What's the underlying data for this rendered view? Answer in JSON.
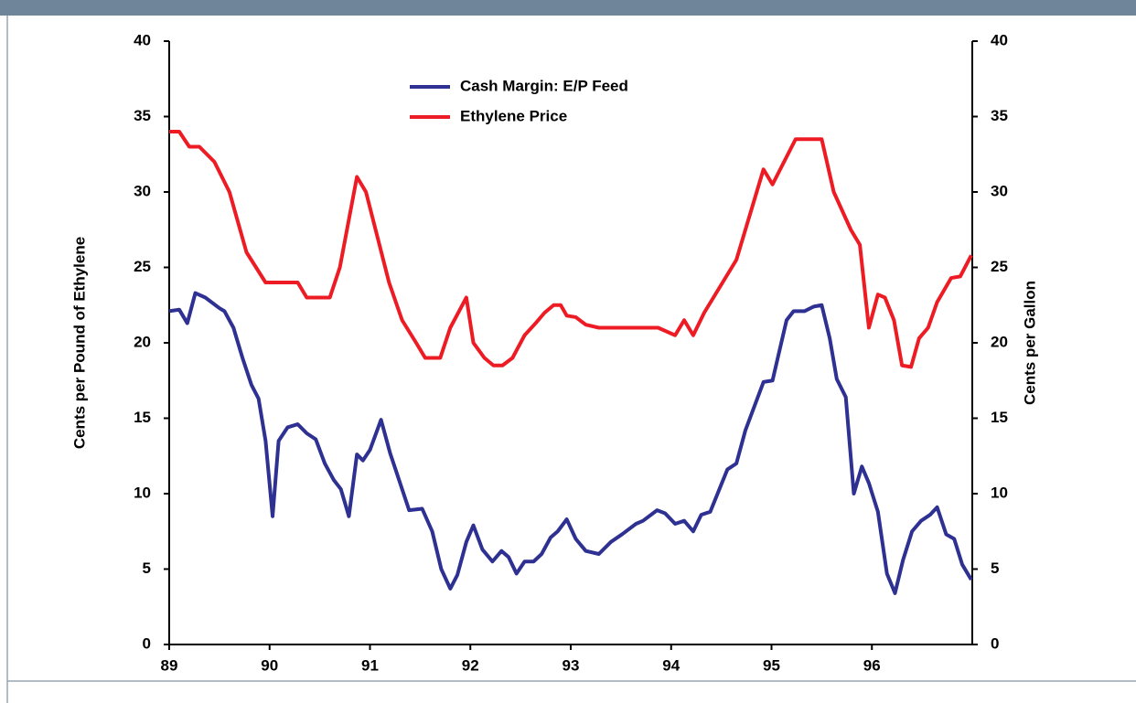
{
  "chart_data": {
    "type": "line",
    "xlabel": null,
    "ylabel": "Cents per Pound of Ethylene",
    "y2label": "Cents per Gallon",
    "xlim": [
      89,
      97
    ],
    "xticks": [
      89,
      90,
      91,
      92,
      93,
      94,
      95,
      96
    ],
    "ylim": [
      0,
      40
    ],
    "yticks": [
      0,
      5,
      10,
      15,
      20,
      25,
      30,
      35,
      40
    ],
    "y2lim": [
      0,
      40
    ],
    "y2ticks": [
      0,
      5,
      10,
      15,
      20,
      25,
      30,
      35,
      40
    ],
    "legend": "top",
    "series": [
      {
        "name": "Cash Margin: E/P Feed",
        "color": "#2e3192",
        "x": [
          89.0,
          89.1,
          89.18,
          89.26,
          89.36,
          89.5,
          89.55,
          89.64,
          89.73,
          89.82,
          89.89,
          89.96,
          90.03,
          90.09,
          90.18,
          90.28,
          90.37,
          90.46,
          90.55,
          90.64,
          90.71,
          90.79,
          90.87,
          90.93,
          91.0,
          91.11,
          91.2,
          91.39,
          91.52,
          91.62,
          91.71,
          91.8,
          91.87,
          91.96,
          92.03,
          92.12,
          92.22,
          92.31,
          92.38,
          92.46,
          92.54,
          92.63,
          92.71,
          92.8,
          92.87,
          92.96,
          93.05,
          93.15,
          93.28,
          93.4,
          93.51,
          93.65,
          93.72,
          93.86,
          93.94,
          94.04,
          94.13,
          94.22,
          94.3,
          94.39,
          94.56,
          94.65,
          94.74,
          94.92,
          95.01,
          95.15,
          95.22,
          95.33,
          95.42,
          95.5,
          95.58,
          95.65,
          95.74,
          95.82,
          95.9,
          95.97,
          96.06,
          96.15,
          96.23,
          96.31,
          96.4,
          96.49,
          96.58,
          96.65,
          96.74,
          96.82,
          96.9,
          96.99
        ],
        "values": [
          22.1,
          22.2,
          21.3,
          23.3,
          23.0,
          22.3,
          22.1,
          21.0,
          19.0,
          17.2,
          16.3,
          13.5,
          8.5,
          13.5,
          14.4,
          14.6,
          14.0,
          13.6,
          12.0,
          10.9,
          10.3,
          8.5,
          12.6,
          12.2,
          12.9,
          14.9,
          12.7,
          8.9,
          9.0,
          7.5,
          5.0,
          3.7,
          4.6,
          6.8,
          7.9,
          6.3,
          5.5,
          6.2,
          5.8,
          4.7,
          5.5,
          5.5,
          6.0,
          7.1,
          7.5,
          8.3,
          7.0,
          6.2,
          6.0,
          6.8,
          7.3,
          8.0,
          8.2,
          8.9,
          8.7,
          8.0,
          8.2,
          7.5,
          8.6,
          8.8,
          11.6,
          12.0,
          14.2,
          17.4,
          17.5,
          21.5,
          22.1,
          22.1,
          22.4,
          22.5,
          20.3,
          17.6,
          16.4,
          10.0,
          11.8,
          10.7,
          8.8,
          4.7,
          3.4,
          5.6,
          7.5,
          8.2,
          8.6,
          9.1,
          7.3,
          7.0,
          5.3,
          4.3
        ]
      },
      {
        "name": "Ethylene Price",
        "color": "#ed1c24",
        "x": [
          89.0,
          89.1,
          89.2,
          89.3,
          89.45,
          89.6,
          89.77,
          89.96,
          90.05,
          90.28,
          90.37,
          90.6,
          90.7,
          90.87,
          90.96,
          91.19,
          91.32,
          91.46,
          91.55,
          91.7,
          91.8,
          91.96,
          92.03,
          92.14,
          92.23,
          92.32,
          92.42,
          92.54,
          92.65,
          92.74,
          92.83,
          92.9,
          92.96,
          93.05,
          93.15,
          93.28,
          93.87,
          94.04,
          94.13,
          94.22,
          94.33,
          94.65,
          94.92,
          95.01,
          95.24,
          95.5,
          95.62,
          95.79,
          95.88,
          95.97,
          96.06,
          96.13,
          96.22,
          96.3,
          96.39,
          96.47,
          96.56,
          96.65,
          96.79,
          96.88,
          96.99
        ],
        "values": [
          34,
          34,
          33,
          33,
          32,
          30,
          26,
          24,
          24,
          24,
          23,
          23,
          25,
          31,
          30,
          24,
          21.5,
          20,
          19,
          19,
          21,
          23,
          20,
          19,
          18.5,
          18.5,
          19,
          20.5,
          21.3,
          22,
          22.5,
          22.5,
          21.8,
          21.7,
          21.2,
          21,
          21,
          20.5,
          21.5,
          20.5,
          22,
          25.5,
          31.5,
          30.5,
          33.5,
          33.5,
          30,
          27.5,
          26.5,
          21,
          23.2,
          23,
          21.5,
          18.5,
          18.4,
          20.3,
          21,
          22.7,
          24.3,
          24.4,
          25.8
        ]
      }
    ]
  }
}
